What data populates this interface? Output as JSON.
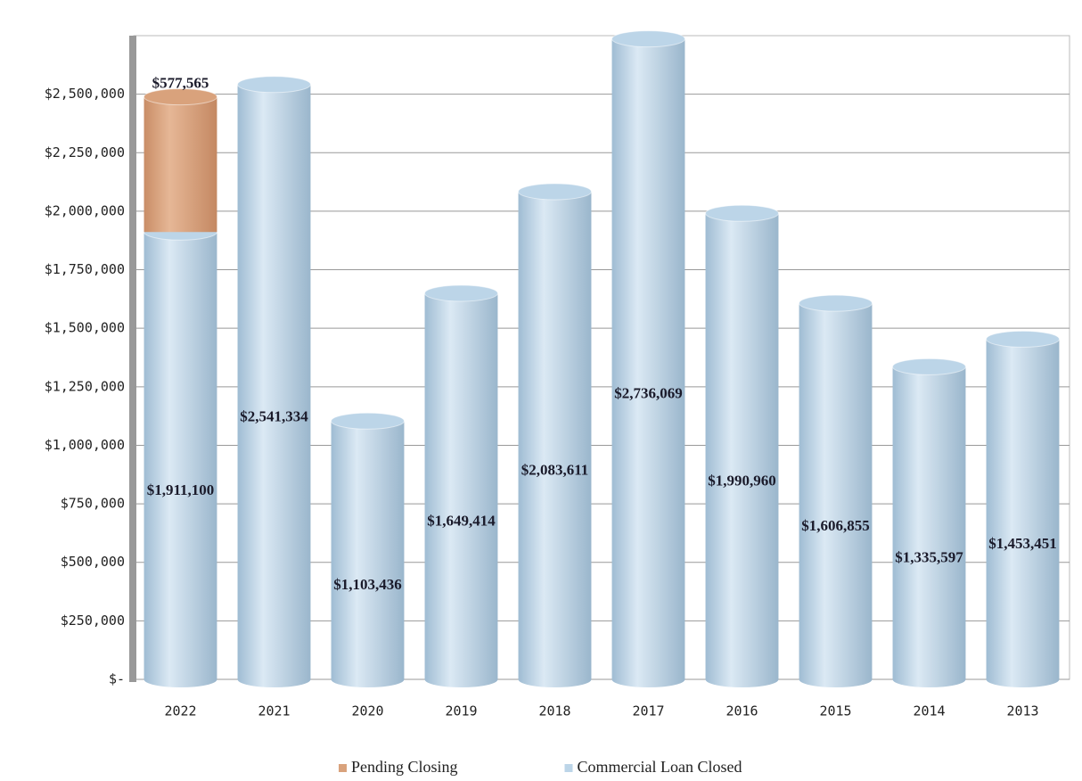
{
  "chart_data": {
    "type": "bar",
    "stacked": true,
    "categories": [
      "2022",
      "2021",
      "2020",
      "2019",
      "2018",
      "2017",
      "2016",
      "2015",
      "2014",
      "2013"
    ],
    "series": [
      {
        "name": "Commercial Loan Closed",
        "color": "#bcd5e8",
        "values": [
          1911100,
          2541334,
          1103436,
          1649414,
          2083611,
          2736069,
          1990960,
          1606855,
          1335597,
          1453451
        ],
        "value_labels": [
          "$1,911,100",
          "$2,541,334",
          "$1,103,436",
          "$1,649,414",
          "$2,083,611",
          "$2,736,069",
          "$1,990,960",
          "$1,606,855",
          "$1,335,597",
          "$1,453,451"
        ]
      },
      {
        "name": "Pending Closing",
        "color": "#d9a27c",
        "values": [
          577565,
          null,
          null,
          null,
          null,
          null,
          null,
          null,
          null,
          null
        ],
        "value_labels": [
          "$577,565",
          null,
          null,
          null,
          null,
          null,
          null,
          null,
          null,
          null
        ]
      }
    ],
    "ylim": [
      0,
      2750000
    ],
    "yticks": [
      {
        "value": 0,
        "label": "$-"
      },
      {
        "value": 250000,
        "label": "$250,000"
      },
      {
        "value": 500000,
        "label": "$500,000"
      },
      {
        "value": 750000,
        "label": "$750,000"
      },
      {
        "value": 1000000,
        "label": "$1,000,000"
      },
      {
        "value": 1250000,
        "label": "$1,250,000"
      },
      {
        "value": 1500000,
        "label": "$1,500,000"
      },
      {
        "value": 1750000,
        "label": "$1,750,000"
      },
      {
        "value": 2000000,
        "label": "$2,000,000"
      },
      {
        "value": 2250000,
        "label": "$2,250,000"
      },
      {
        "value": 2500000,
        "label": "$2,500,000"
      }
    ],
    "grid": true,
    "legend": "bottom"
  }
}
